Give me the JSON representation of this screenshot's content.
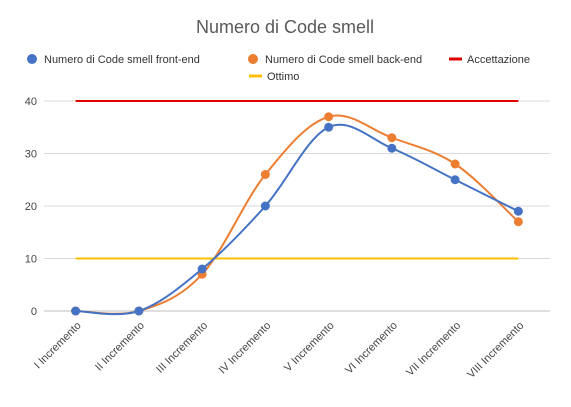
{
  "chart_data": {
    "type": "line",
    "title": "Numero di Code smell",
    "categories": [
      "I Incremento",
      "II Incremento",
      "III Incremento",
      "IV Incremento",
      "V Incremento",
      "VI Incremento",
      "VII Incremento",
      "VIII Incremento"
    ],
    "series": [
      {
        "name": "Numero di Code smell front-end",
        "values": [
          0,
          0,
          8,
          20,
          35,
          31,
          25,
          19
        ],
        "color": "#4472C4",
        "markers": true,
        "smooth": true
      },
      {
        "name": "Numero di Code smell back-end",
        "values": [
          0,
          0,
          7,
          26,
          37,
          33,
          28,
          17
        ],
        "color": "#ED7D31",
        "markers": true,
        "smooth": true
      },
      {
        "name": "Accettazione",
        "values": [
          40,
          40,
          40,
          40,
          40,
          40,
          40,
          40
        ],
        "color": "#E00000",
        "markers": false,
        "smooth": false
      },
      {
        "name": "Ottimo",
        "values": [
          10,
          10,
          10,
          10,
          10,
          10,
          10,
          10
        ],
        "color": "#FFC000",
        "markers": false,
        "smooth": false
      }
    ],
    "ylim": [
      0,
      40
    ],
    "yticks": [
      0,
      10,
      20,
      30,
      40
    ],
    "grid": true,
    "legend": "top",
    "xlabel": "",
    "ylabel": ""
  }
}
